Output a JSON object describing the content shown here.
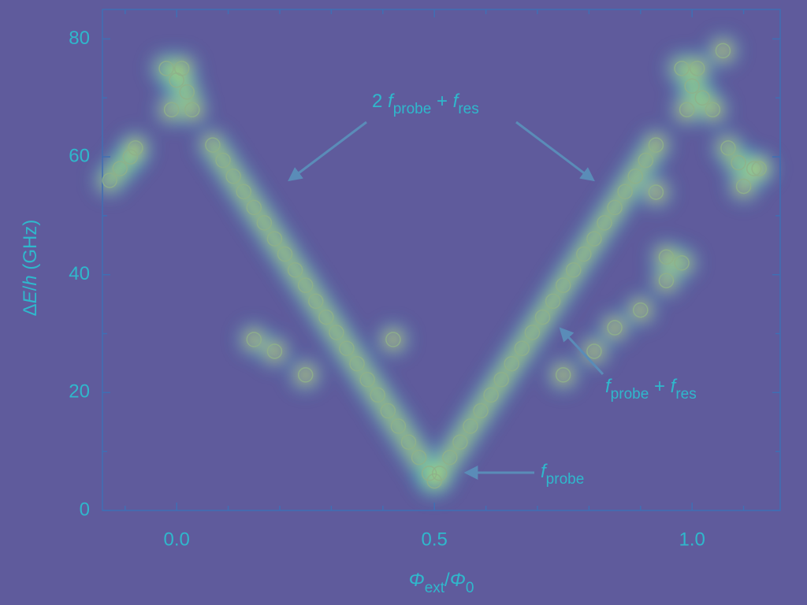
{
  "chart_data": {
    "type": "scatter",
    "x_label": [
      {
        "text": "Φ",
        "style": "italic"
      },
      {
        "text": "ext",
        "style": "sub"
      },
      {
        "text": "/",
        "style": "normal"
      },
      {
        "text": "Φ",
        "style": "italic"
      },
      {
        "text": "0",
        "style": "sub"
      }
    ],
    "y_label": [
      {
        "text": "Δ",
        "style": "normal"
      },
      {
        "text": "E",
        "style": "italic"
      },
      {
        "text": "/",
        "style": "normal"
      },
      {
        "text": "h",
        "style": "italic"
      },
      {
        "text": " (GHz)",
        "style": "normal"
      }
    ],
    "xlim": [
      -0.144,
      1.171
    ],
    "ylim": [
      0,
      85
    ],
    "xticks": [
      {
        "value": 0,
        "label": "0.0"
      },
      0.5,
      {
        "value": 1,
        "label": "1.0"
      }
    ],
    "xminorticks": [
      -0.1,
      0.1,
      0.2,
      0.3,
      0.4,
      0.6,
      0.7,
      0.8,
      0.9,
      1.1
    ],
    "yticks": [
      0,
      20,
      40,
      60,
      80
    ],
    "yminorticks": [
      10,
      30,
      50,
      70
    ],
    "color": "#8fb08a",
    "series": [
      {
        "x": [
          0.07,
          0.09,
          0.11,
          0.13,
          0.15,
          0.17,
          0.19,
          0.21,
          0.23,
          0.25,
          0.27,
          0.29,
          0.31,
          0.33,
          0.35,
          0.37,
          0.39,
          0.41,
          0.43,
          0.45,
          0.47,
          0.49,
          0.5,
          0.51,
          0.53,
          0.55,
          0.57,
          0.59,
          0.61,
          0.63,
          0.65,
          0.67,
          0.69,
          0.71,
          0.73,
          0.75,
          0.77,
          0.79,
          0.81,
          0.83,
          0.85,
          0.87,
          0.89,
          0.91,
          0.93,
          -0.02,
          0.0,
          0.02,
          -0.01,
          0.03,
          0.01,
          -0.13,
          -0.11,
          -0.09,
          -0.08,
          0.98,
          1.0,
          1.02,
          0.99,
          1.04,
          1.01,
          1.07,
          1.09,
          1.12,
          1.1,
          1.13,
          0.15,
          0.19,
          0.25,
          0.42,
          0.75,
          0.81,
          0.85,
          0.9,
          0.95,
          0.98,
          0.95,
          0.93,
          1.06
        ],
        "values": [
          62.0,
          59.4,
          56.7,
          54.1,
          51.4,
          48.8,
          46.1,
          43.5,
          40.8,
          38.2,
          35.5,
          32.8,
          30.2,
          27.5,
          24.9,
          22.2,
          19.6,
          16.9,
          14.3,
          11.6,
          9.0,
          6.3,
          5.0,
          6.3,
          9.0,
          11.6,
          14.3,
          16.9,
          19.6,
          22.2,
          24.9,
          27.5,
          30.2,
          32.8,
          35.5,
          38.2,
          40.8,
          43.5,
          46.1,
          48.8,
          51.4,
          54.1,
          56.7,
          59.4,
          62.0,
          75,
          73,
          71,
          68,
          68,
          75,
          56,
          58,
          60,
          61.5,
          75,
          72,
          70,
          68,
          68,
          75,
          61.5,
          59,
          58,
          55,
          58,
          29,
          27,
          23,
          29,
          23,
          27,
          31,
          34,
          39,
          42,
          43,
          54,
          78
        ]
      }
    ],
    "annotations": [
      {
        "parts": [
          {
            "text": "2 ",
            "style": "normal"
          },
          {
            "text": "f",
            "style": "italic"
          },
          {
            "text": "probe",
            "style": "sub"
          },
          {
            "text": " + ",
            "style": "normal"
          },
          {
            "text": "f",
            "style": "italic"
          },
          {
            "text": "res",
            "style": "sub"
          }
        ]
      },
      {
        "parts": [
          {
            "text": "f",
            "style": "italic"
          },
          {
            "text": "probe",
            "style": "sub"
          },
          {
            "text": " + ",
            "style": "normal"
          },
          {
            "text": "f",
            "style": "italic"
          },
          {
            "text": "res",
            "style": "sub"
          }
        ]
      },
      {
        "parts": [
          {
            "text": "f",
            "style": "italic"
          },
          {
            "text": "probe",
            "style": "sub"
          }
        ]
      }
    ]
  }
}
